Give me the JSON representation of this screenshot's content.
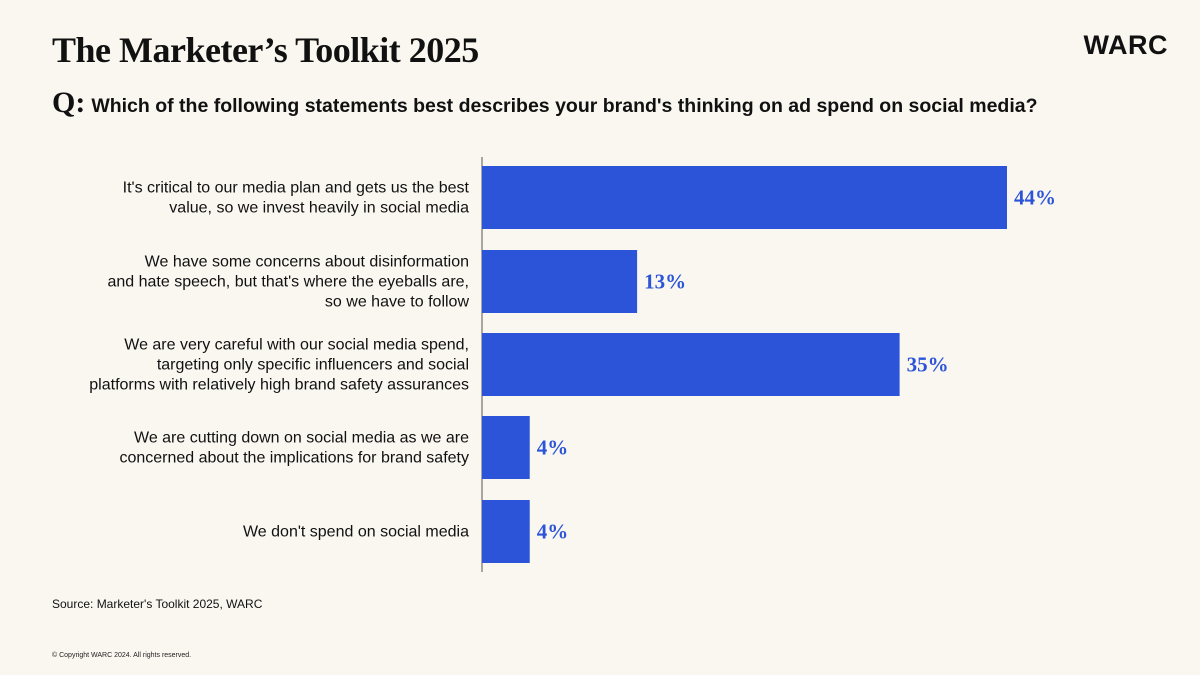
{
  "header": {
    "title": "The Marketer’s Toolkit 2025",
    "logo": "WARC",
    "question_prefix": "Q:",
    "question": "Which of the following statements best describes your brand's thinking on ad spend on social media?"
  },
  "colors": {
    "bar": "#2B54D8",
    "value_label": "#2B54D8",
    "background": "#FAF7F1",
    "axis": "#555555"
  },
  "chart_data": {
    "type": "bar",
    "orientation": "horizontal",
    "categories": [
      [
        "It's critical to our media plan and gets us the best",
        "value, so we invest heavily in social media"
      ],
      [
        "We have some concerns about disinformation",
        "and hate speech, but that's where the eyeballs are,",
        "so we have to follow"
      ],
      [
        "We are very careful with our social media spend,",
        "targeting only specific influencers and social",
        "platforms with relatively high brand safety assurances"
      ],
      [
        "We are cutting down on social media as we are",
        "concerned about the implications for brand safety"
      ],
      [
        "We don't spend on social media"
      ]
    ],
    "values": [
      44,
      13,
      35,
      4,
      4
    ],
    "value_labels": [
      "44%",
      "13%",
      "35%",
      "4%",
      "4%"
    ],
    "xlim": [
      0,
      44
    ],
    "grid": false
  },
  "footer": {
    "source": "Source: Marketer's Toolkit 2025, WARC",
    "copyright": "© Copyright WARC 2024. All rights reserved."
  }
}
